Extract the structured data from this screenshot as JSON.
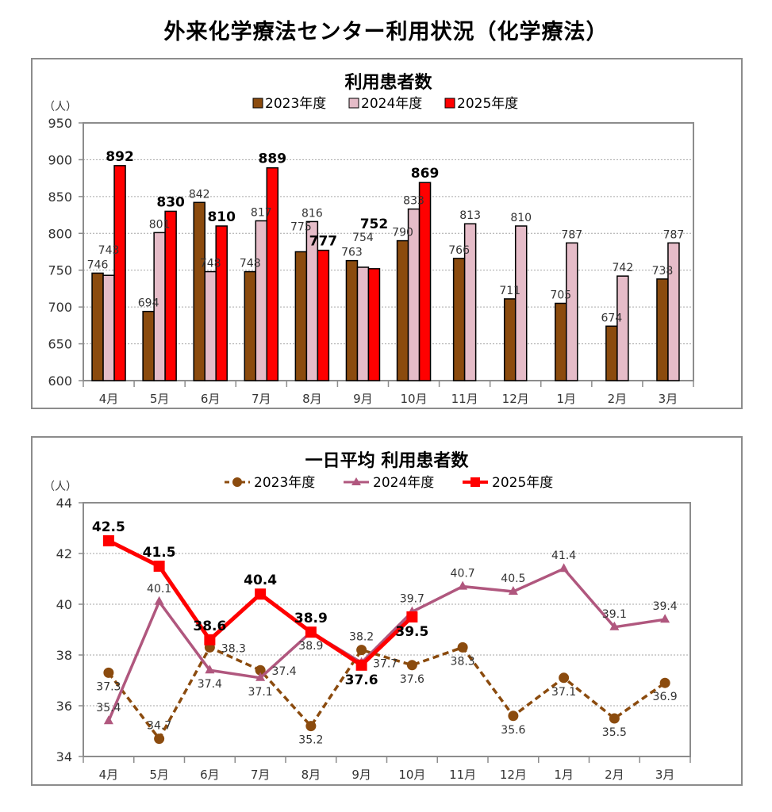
{
  "page": {
    "title": "外来化学療法センター利用状況（化学療法）"
  },
  "chart_data": [
    {
      "type": "bar",
      "title": "利用患者数",
      "ylabel": "（人）",
      "xlabel": "",
      "ylim": [
        600,
        950
      ],
      "yticks": [
        600,
        650,
        700,
        750,
        800,
        850,
        900,
        950
      ],
      "grid": true,
      "legend_position": "top-center",
      "categories": [
        "4月",
        "5月",
        "6月",
        "7月",
        "8月",
        "9月",
        "10月",
        "11月",
        "12月",
        "1月",
        "2月",
        "3月"
      ],
      "series": [
        {
          "name": "2023年度",
          "color": "#8B4B0E",
          "bold_labels": false,
          "values": [
            746,
            694,
            842,
            748,
            775,
            763,
            790,
            766,
            711,
            705,
            674,
            738
          ]
        },
        {
          "name": "2024年度",
          "color": "#E5BCC8",
          "bold_labels": false,
          "values": [
            743,
            801,
            748,
            817,
            816,
            754,
            833,
            813,
            810,
            787,
            742,
            787
          ]
        },
        {
          "name": "2025年度",
          "color": "#FF0000",
          "bold_labels": true,
          "values": [
            892,
            830,
            810,
            889,
            777,
            752,
            869,
            null,
            null,
            null,
            null,
            null
          ]
        }
      ]
    },
    {
      "type": "line",
      "title": "一日平均 利用患者数",
      "ylabel": "（人）",
      "xlabel": "",
      "ylim": [
        34,
        44
      ],
      "yticks": [
        34,
        36,
        38,
        40,
        42,
        44
      ],
      "grid": true,
      "legend_position": "top-center",
      "categories": [
        "4月",
        "5月",
        "6月",
        "7月",
        "8月",
        "9月",
        "10月",
        "11月",
        "12月",
        "1月",
        "2月",
        "3月"
      ],
      "series": [
        {
          "name": "2023年度",
          "color": "#8B4B0E",
          "marker": "circle",
          "dashed": true,
          "bold_labels": false,
          "values": [
            37.3,
            34.7,
            38.3,
            37.4,
            35.2,
            38.2,
            37.6,
            38.3,
            35.6,
            37.1,
            35.5,
            36.9
          ]
        },
        {
          "name": "2024年度",
          "color": "#B0577E",
          "marker": "triangle",
          "dashed": false,
          "bold_labels": false,
          "values": [
            35.4,
            40.1,
            37.4,
            37.1,
            38.9,
            37.7,
            39.7,
            40.7,
            40.5,
            41.4,
            39.1,
            39.4
          ]
        },
        {
          "name": "2025年度",
          "color": "#FF0000",
          "marker": "square",
          "dashed": false,
          "bold_labels": true,
          "values": [
            42.5,
            41.5,
            38.6,
            40.4,
            38.9,
            37.6,
            39.5,
            null,
            null,
            null,
            null,
            null
          ]
        }
      ]
    }
  ]
}
